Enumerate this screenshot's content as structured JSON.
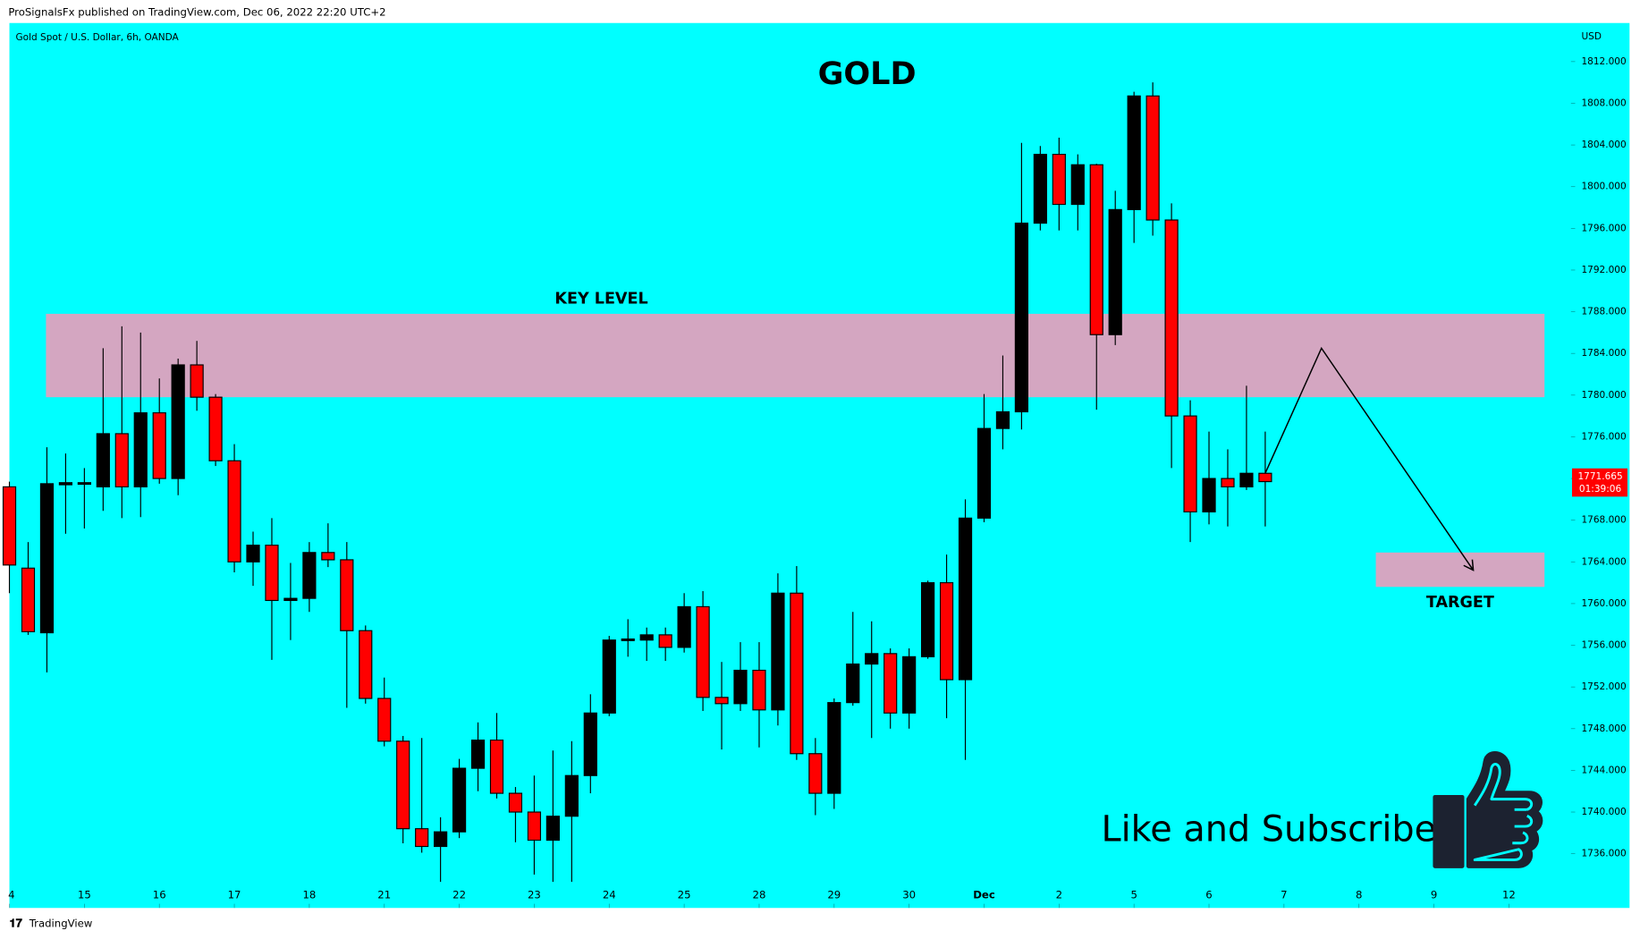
{
  "header": "ProSignalsFx published on TradingView.com, Dec 06, 2022 22:20 UTC+2",
  "footer": "TradingView",
  "chart_data": {
    "type": "candlestick",
    "title": "GOLD",
    "subtitle": "Gold Spot / U.S. Dollar, 6h, OANDA",
    "y_axis_label": "USD",
    "up_color": "#000000",
    "down_color": "#ff0000",
    "background": "#00ffff",
    "open": [
      1771.2,
      1763.4,
      1757.2,
      1771.4,
      1771.5,
      1771.2,
      1776.3,
      1771.2,
      1778.3,
      1772.0,
      1782.9,
      1779.8,
      1773.7,
      1764.0,
      1765.6,
      1760.3,
      1760.5,
      1764.9,
      1764.2,
      1757.4,
      1750.9,
      1746.8,
      1738.4,
      1736.7,
      1738.1,
      1744.2,
      1746.9,
      1741.8,
      1740.0,
      1737.3,
      1739.6,
      1743.5,
      1749.5,
      1756.5,
      1756.5,
      1757.0,
      1755.8,
      1759.7,
      1751.0,
      1750.4,
      1753.6,
      1749.8,
      1761.0,
      1745.6,
      1741.8,
      1750.5,
      1754.2,
      1755.2,
      1749.5,
      1754.9,
      1762.0,
      1752.7,
      1768.2,
      1776.8,
      1778.4,
      1796.5,
      1803.1,
      1798.3,
      1802.1,
      1785.8,
      1797.8,
      1808.7,
      1796.8,
      1778.0,
      1768.8,
      1772.0,
      1771.2,
      1772.5
    ],
    "high": [
      1771.7,
      1765.9,
      1775.0,
      1774.4,
      1773.0,
      1784.5,
      1786.6,
      1786.0,
      1781.6,
      1783.5,
      1785.2,
      1780.1,
      1775.3,
      1766.9,
      1768.2,
      1763.9,
      1765.9,
      1767.7,
      1765.9,
      1757.9,
      1752.9,
      1747.3,
      1747.1,
      1739.5,
      1745.1,
      1748.6,
      1749.5,
      1742.4,
      1743.5,
      1745.9,
      1746.8,
      1751.3,
      1756.9,
      1758.5,
      1757.7,
      1757.7,
      1761.0,
      1761.2,
      1754.4,
      1756.3,
      1756.3,
      1762.9,
      1763.6,
      1747.1,
      1750.9,
      1759.2,
      1758.3,
      1755.7,
      1755.7,
      1762.2,
      1764.7,
      1770.0,
      1780.1,
      1783.8,
      1804.2,
      1803.9,
      1804.7,
      1803.1,
      1802.2,
      1799.6,
      1809.1,
      1810.0,
      1798.4,
      1779.5,
      1776.5,
      1774.8,
      1780.9,
      1776.5
    ],
    "low": [
      1761.0,
      1757.0,
      1753.4,
      1766.7,
      1767.2,
      1768.9,
      1768.2,
      1768.3,
      1771.5,
      1770.4,
      1778.5,
      1773.2,
      1763.0,
      1761.7,
      1754.6,
      1756.5,
      1759.2,
      1763.5,
      1750.0,
      1750.4,
      1746.3,
      1737.0,
      1736.1,
      1733.3,
      1737.5,
      1742.0,
      1741.3,
      1737.1,
      1734.0,
      1733.3,
      1733.3,
      1741.8,
      1749.2,
      1754.9,
      1754.5,
      1754.5,
      1755.3,
      1749.7,
      1746.0,
      1749.7,
      1746.2,
      1748.3,
      1745.0,
      1739.7,
      1740.3,
      1750.2,
      1747.1,
      1748.0,
      1748.0,
      1754.7,
      1749.0,
      1745.0,
      1767.8,
      1774.8,
      1776.7,
      1795.8,
      1795.8,
      1795.8,
      1778.6,
      1784.8,
      1794.6,
      1795.3,
      1773.0,
      1765.9,
      1767.6,
      1767.4,
      1770.9,
      1767.4
    ],
    "close": [
      1763.7,
      1757.3,
      1771.5,
      1771.6,
      1771.6,
      1776.3,
      1771.2,
      1778.3,
      1772.0,
      1782.9,
      1779.8,
      1773.7,
      1764.0,
      1765.6,
      1760.3,
      1760.5,
      1764.9,
      1764.2,
      1757.4,
      1750.9,
      1746.8,
      1738.4,
      1736.7,
      1738.1,
      1744.2,
      1746.9,
      1741.8,
      1740.0,
      1737.3,
      1739.6,
      1743.5,
      1749.5,
      1756.5,
      1756.6,
      1757.0,
      1755.8,
      1759.7,
      1751.0,
      1750.4,
      1753.6,
      1749.8,
      1761.0,
      1745.6,
      1741.8,
      1750.5,
      1754.2,
      1755.2,
      1749.5,
      1754.9,
      1762.0,
      1752.7,
      1768.2,
      1776.8,
      1778.4,
      1796.5,
      1803.1,
      1798.3,
      1802.1,
      1785.8,
      1797.8,
      1808.7,
      1796.8,
      1778.0,
      1768.8,
      1772.0,
      1771.2,
      1772.5,
      1771.7
    ],
    "xlim": [
      0,
      83.2
    ],
    "xticks": [
      {
        "value": 0,
        "label": "4"
      },
      {
        "value": 4,
        "label": "15"
      },
      {
        "value": 8,
        "label": "16"
      },
      {
        "value": 12,
        "label": "17"
      },
      {
        "value": 16,
        "label": "18"
      },
      {
        "value": 20,
        "label": "21"
      },
      {
        "value": 24,
        "label": "22"
      },
      {
        "value": 28,
        "label": "23"
      },
      {
        "value": 32,
        "label": "24"
      },
      {
        "value": 36,
        "label": "25"
      },
      {
        "value": 40,
        "label": "28"
      },
      {
        "value": 44,
        "label": "29"
      },
      {
        "value": 48,
        "label": "30"
      },
      {
        "value": 52,
        "label": "Dec"
      },
      {
        "value": 56,
        "label": "2"
      },
      {
        "value": 60,
        "label": "5"
      },
      {
        "value": 64,
        "label": "6"
      },
      {
        "value": 68,
        "label": "7"
      },
      {
        "value": 72,
        "label": "8"
      },
      {
        "value": 76,
        "label": "9"
      },
      {
        "value": 80,
        "label": "12"
      }
    ],
    "ylim": [
      1730.8,
      1815.7
    ],
    "yticks": [
      {
        "value": 1736,
        "label": "1736.000"
      },
      {
        "value": 1740,
        "label": "1740.000"
      },
      {
        "value": 1744,
        "label": "1744.000"
      },
      {
        "value": 1748,
        "label": "1748.000"
      },
      {
        "value": 1752,
        "label": "1752.000"
      },
      {
        "value": 1756,
        "label": "1756.000"
      },
      {
        "value": 1760,
        "label": "1760.000"
      },
      {
        "value": 1764,
        "label": "1764.000"
      },
      {
        "value": 1768,
        "label": "1768.000"
      },
      {
        "value": 1772,
        "label": "1772.000"
      },
      {
        "value": 1776,
        "label": "1776.000"
      },
      {
        "value": 1780,
        "label": "1780.000"
      },
      {
        "value": 1784,
        "label": "1784.000"
      },
      {
        "value": 1788,
        "label": "1788.000"
      },
      {
        "value": 1792,
        "label": "1792.000"
      },
      {
        "value": 1796,
        "label": "1796.000"
      },
      {
        "value": 1800,
        "label": "1800.000"
      },
      {
        "value": 1804,
        "label": "1804.000"
      },
      {
        "value": 1808,
        "label": "1808.000"
      },
      {
        "value": 1812,
        "label": "1812.000"
      }
    ],
    "last_price": 1771.665,
    "countdown": "01:39:06",
    "zones": [
      {
        "label": "KEY LEVEL",
        "color": "#d4a6c1",
        "x": [
          1.95,
          81.9
        ],
        "y": [
          1779.8,
          1787.8
        ]
      },
      {
        "label": "TARGET",
        "color": "#d4a6c1",
        "x": [
          72.9,
          81.9
        ],
        "y": [
          1761.6,
          1764.9
        ]
      }
    ],
    "projection": {
      "x": [
        67,
        70,
        78.1
      ],
      "y": [
        1772.5,
        1784.5,
        1763.2
      ]
    },
    "annotation": "Like and Subscribe"
  }
}
